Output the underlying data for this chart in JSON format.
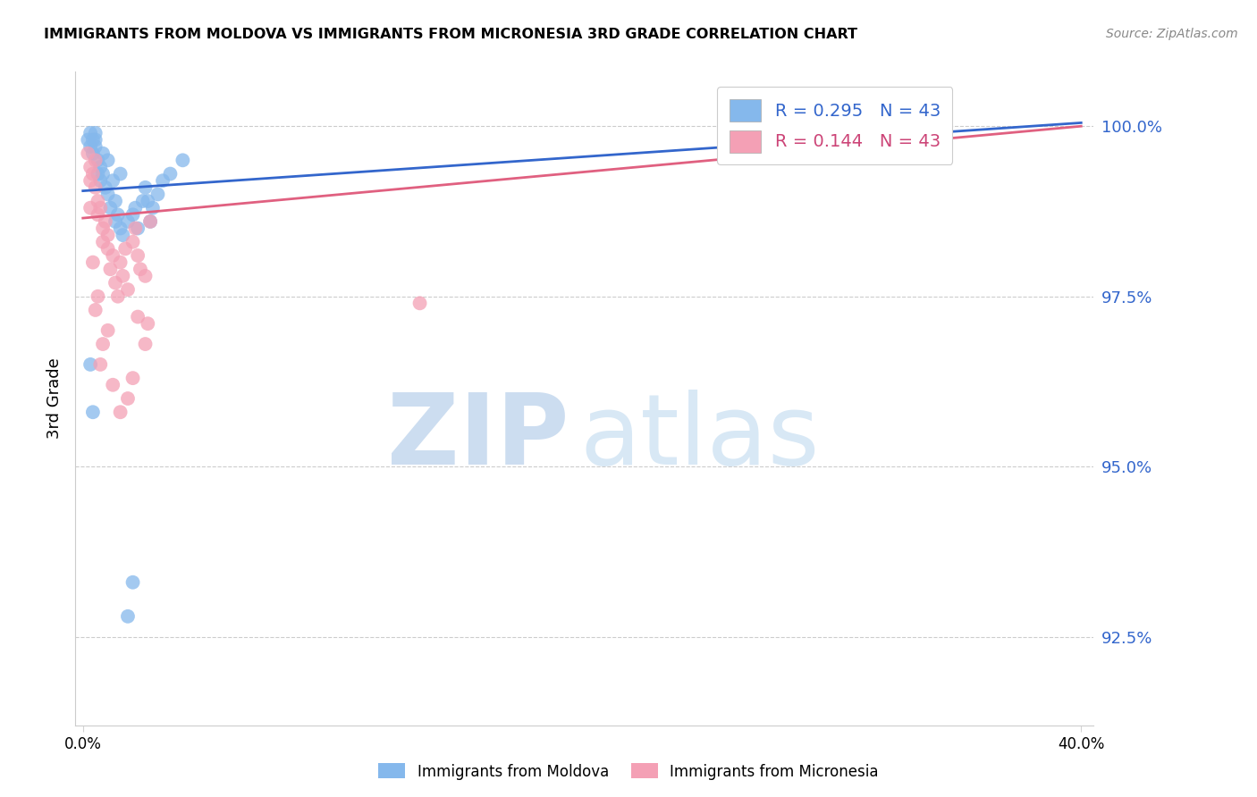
{
  "title": "IMMIGRANTS FROM MOLDOVA VS IMMIGRANTS FROM MICRONESIA 3RD GRADE CORRELATION CHART",
  "source": "Source: ZipAtlas.com",
  "ylabel": "3rd Grade",
  "ytick_values": [
    100.0,
    97.5,
    95.0,
    92.5
  ],
  "ymin": 91.2,
  "ymax": 100.8,
  "xmin": -0.3,
  "xmax": 40.5,
  "color_moldova": "#85B8EC",
  "color_micronesia": "#F4A0B5",
  "trendline_moldova": "#3366CC",
  "trendline_micronesia": "#E06080",
  "watermark_zip": "ZIP",
  "watermark_atlas": "atlas",
  "moldova_x": [
    0.2,
    0.3,
    0.3,
    0.4,
    0.4,
    0.5,
    0.5,
    0.5,
    0.6,
    0.6,
    0.7,
    0.7,
    0.8,
    0.8,
    0.9,
    1.0,
    1.0,
    1.1,
    1.2,
    1.3,
    1.3,
    1.4,
    1.5,
    1.5,
    1.6,
    1.8,
    2.0,
    2.1,
    2.2,
    2.4,
    2.5,
    2.6,
    2.7,
    2.8,
    3.0,
    3.2,
    3.5,
    4.0,
    0.3,
    0.4,
    1.8,
    2.0,
    27.0
  ],
  "moldova_y": [
    99.8,
    99.9,
    99.7,
    99.8,
    99.6,
    99.9,
    99.8,
    99.7,
    99.5,
    99.3,
    99.4,
    99.2,
    99.6,
    99.3,
    99.1,
    99.5,
    99.0,
    98.8,
    99.2,
    98.6,
    98.9,
    98.7,
    99.3,
    98.5,
    98.4,
    98.6,
    98.7,
    98.8,
    98.5,
    98.9,
    99.1,
    98.9,
    98.6,
    98.8,
    99.0,
    99.2,
    99.3,
    99.5,
    96.5,
    95.8,
    92.8,
    93.3,
    100.0
  ],
  "micronesia_x": [
    0.2,
    0.3,
    0.3,
    0.4,
    0.5,
    0.5,
    0.6,
    0.6,
    0.7,
    0.8,
    0.8,
    0.9,
    1.0,
    1.0,
    1.1,
    1.2,
    1.3,
    1.4,
    1.5,
    1.6,
    1.7,
    1.8,
    2.0,
    2.1,
    2.2,
    2.3,
    2.5,
    2.6,
    2.7,
    0.4,
    0.5,
    0.6,
    0.7,
    0.8,
    1.0,
    1.2,
    1.5,
    1.8,
    2.0,
    2.2,
    2.5,
    13.5,
    0.3
  ],
  "micronesia_y": [
    99.6,
    99.4,
    99.2,
    99.3,
    99.5,
    99.1,
    98.9,
    98.7,
    98.8,
    98.5,
    98.3,
    98.6,
    98.4,
    98.2,
    97.9,
    98.1,
    97.7,
    97.5,
    98.0,
    97.8,
    98.2,
    97.6,
    98.3,
    98.5,
    98.1,
    97.9,
    96.8,
    97.1,
    98.6,
    98.0,
    97.3,
    97.5,
    96.5,
    96.8,
    97.0,
    96.2,
    95.8,
    96.0,
    96.3,
    97.2,
    97.8,
    97.4,
    98.8
  ]
}
